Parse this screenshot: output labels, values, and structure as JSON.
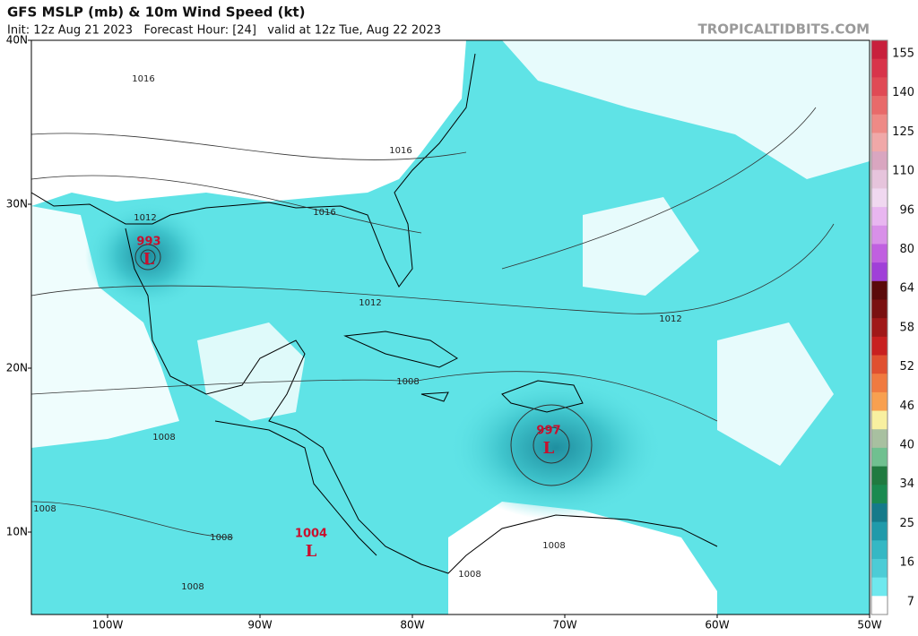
{
  "header": {
    "title": "GFS MSLP (mb) & 10m Wind Speed (kt)",
    "subtitle": "Init: 12z Aug 21 2023   Forecast Hour: [24]   valid at 12z Tue, Aug 22 2023",
    "site": "TROPICALTIDBITS.COM"
  },
  "map": {
    "lat_labels": [
      "40N",
      "30N",
      "20N",
      "10N"
    ],
    "lon_labels": [
      "100W",
      "90W",
      "80W",
      "70W",
      "60W",
      "50W"
    ],
    "isobar_labels": [
      "1016",
      "1016",
      "1016",
      "1012",
      "1012",
      "1012",
      "1008",
      "1008",
      "1008",
      "1008",
      "1008",
      "1008",
      "1008"
    ],
    "lows": [
      {
        "pressure": "993",
        "symbol": "L"
      },
      {
        "pressure": "997",
        "symbol": "L"
      },
      {
        "pressure": "1004",
        "symbol": "L"
      }
    ]
  },
  "colorbar": {
    "labels": [
      "155",
      "140",
      "125",
      "110",
      "96",
      "80",
      "64",
      "58",
      "52",
      "46",
      "40",
      "34",
      "25",
      "16",
      "7"
    ]
  }
}
